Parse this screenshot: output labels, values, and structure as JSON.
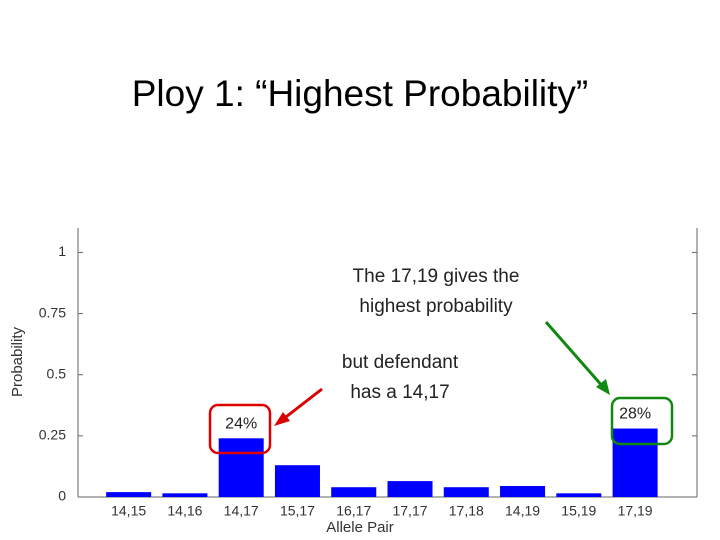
{
  "title": "Ploy 1: “Highest Probability”",
  "chart_data": {
    "type": "bar",
    "xlabel": "Allele Pair",
    "ylabel": "Probability",
    "categories": [
      "14,15",
      "14,16",
      "14,17",
      "15,17",
      "16,17",
      "17,17",
      "17,18",
      "14,19",
      "15,19",
      "17,19"
    ],
    "values": [
      0.02,
      0.015,
      0.24,
      0.13,
      0.04,
      0.065,
      0.04,
      0.045,
      0.015,
      0.28
    ],
    "value_labels": [
      null,
      null,
      "24%",
      null,
      null,
      null,
      null,
      null,
      null,
      "28%"
    ],
    "color": "#0000ff",
    "ylim": [
      0,
      1.1
    ],
    "yticks": [
      0,
      0.25,
      0.5,
      0.75,
      1
    ],
    "grid": false,
    "annotations": [
      {
        "lines": [
          "The 17,19 gives the",
          "highest probability"
        ]
      },
      {
        "lines": [
          "but defendant",
          "has a 14,17"
        ]
      }
    ]
  }
}
